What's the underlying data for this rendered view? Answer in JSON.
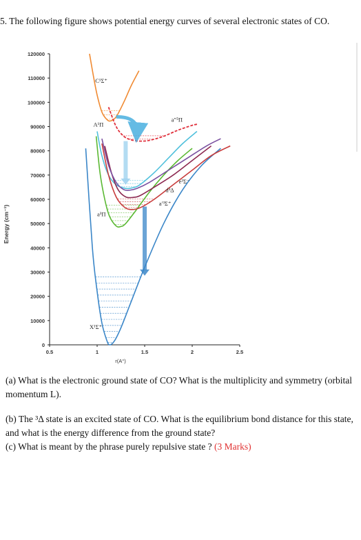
{
  "question": {
    "intro": "5. The following figure shows potential energy curves of several electronic states of CO."
  },
  "chart_data": {
    "type": "line",
    "title": "",
    "xlabel": "r(A°)",
    "ylabel": "Energy (cm⁻¹)",
    "xlim": [
      0.5,
      2.5
    ],
    "ylim": [
      0,
      120000
    ],
    "xticks": [
      "0.5",
      "1",
      "1.5",
      "2",
      "2.5"
    ],
    "yticks": [
      "0",
      "10000",
      "20000",
      "30000",
      "40000",
      "50000",
      "60000",
      "70000",
      "80000",
      "90000",
      "100000",
      "110000",
      "120000"
    ],
    "grid": false,
    "legend": "none",
    "state_labels": [
      "X¹Σ⁺",
      "a³Π",
      "A¹Π",
      "a′³Σ⁺",
      "d³Δ",
      "e³Σ⁻",
      "C¹Σ⁺",
      "a″⁵Π"
    ],
    "series": [
      {
        "name": "X¹Σ⁺",
        "color": "#3a86c8",
        "x": [
          0.88,
          0.95,
          1.0,
          1.05,
          1.1,
          1.13,
          1.18,
          1.25,
          1.35,
          1.5,
          1.7,
          1.9,
          2.1,
          2.3
        ],
        "y": [
          81000,
          40000,
          22000,
          9000,
          2000,
          0,
          1500,
          7000,
          17000,
          32000,
          50000,
          64000,
          74000,
          81000
        ]
      },
      {
        "name": "a³Π",
        "color": "#5ab832",
        "x": [
          0.99,
          1.03,
          1.08,
          1.13,
          1.2,
          1.25,
          1.3,
          1.4,
          1.55,
          1.7,
          1.85,
          2.0
        ],
        "y": [
          86000,
          71000,
          60000,
          53000,
          49000,
          48800,
          50000,
          55000,
          63000,
          70000,
          76000,
          81000
        ]
      },
      {
        "name": "A¹Π",
        "color": "#4fc0dc",
        "x": [
          1.0,
          1.05,
          1.12,
          1.2,
          1.3,
          1.38,
          1.45,
          1.6,
          1.75,
          1.9,
          2.05
        ],
        "y": [
          88000,
          78000,
          70000,
          66000,
          64500,
          64800,
          66000,
          71000,
          77000,
          83000,
          88000
        ]
      },
      {
        "name": "a′³Σ⁺",
        "color": "#c83c3c",
        "x": [
          1.05,
          1.12,
          1.2,
          1.28,
          1.35,
          1.45,
          1.6,
          1.8,
          2.0,
          2.2,
          2.4
        ],
        "y": [
          83000,
          70000,
          61000,
          57000,
          55800,
          56500,
          60000,
          66000,
          72000,
          78000,
          82000
        ]
      },
      {
        "name": "d³Δ",
        "color": "#8c2850",
        "x": [
          1.08,
          1.15,
          1.22,
          1.3,
          1.38,
          1.45,
          1.6,
          1.8,
          2.0,
          2.2
        ],
        "y": [
          82000,
          71000,
          64000,
          61000,
          60800,
          61500,
          65000,
          70000,
          76000,
          82000
        ]
      },
      {
        "name": "e³Σ⁻",
        "color": "#7a50a0",
        "x": [
          1.05,
          1.12,
          1.2,
          1.28,
          1.35,
          1.42,
          1.55,
          1.75,
          1.95,
          2.15,
          2.3
        ],
        "y": [
          85000,
          74000,
          67000,
          64000,
          63800,
          64500,
          67000,
          72000,
          77000,
          82000,
          85000
        ]
      },
      {
        "name": "C¹Σ⁺",
        "color": "#f08a32",
        "x": [
          0.92,
          0.96,
          1.0,
          1.05,
          1.1,
          1.14,
          1.2,
          1.28,
          1.36,
          1.44
        ],
        "y": [
          120000,
          111000,
          103000,
          96000,
          93000,
          92300,
          94000,
          100000,
          107000,
          113000
        ]
      },
      {
        "name": "a″⁵Π",
        "color": "#e0303c",
        "x": [
          1.12,
          1.2,
          1.28,
          1.36,
          1.45,
          1.55,
          1.7,
          1.85,
          2.0,
          2.06
        ],
        "y": [
          98000,
          90000,
          86000,
          84500,
          84000,
          84300,
          86000,
          88500,
          90500,
          91000
        ]
      }
    ],
    "vibrational_levels": [
      {
        "state": "X¹Σ⁺",
        "color": "#3a86c8",
        "levels": [
          1000,
          3000,
          5500,
          8000,
          10500,
          13000,
          15500,
          18000,
          20500,
          23000,
          25500,
          28000
        ]
      },
      {
        "state": "a³Π",
        "color": "#5ab832",
        "levels": [
          49600,
          51200,
          52800,
          54400,
          56000,
          57600
        ]
      },
      {
        "state": "A¹Π",
        "color": "#4fc0dc",
        "levels": [
          65200,
          66500,
          67800
        ]
      },
      {
        "state": "a′³Σ⁺",
        "color": "#c83c3c",
        "levels": [
          56600,
          57800,
          59000,
          60200
        ]
      },
      {
        "state": "C¹Σ⁺",
        "color": "#f08a32",
        "levels": [
          93000,
          94800,
          96500
        ]
      },
      {
        "state": "a″⁵Π",
        "color": "#e0303c",
        "levels": [
          84800,
          86200
        ]
      }
    ],
    "arrows": [
      {
        "color": "#4ab0e0",
        "from": [
          1.2,
          94000
        ],
        "to": [
          1.42,
          87500
        ],
        "kind": "curved"
      },
      {
        "color": "#9ad0ee",
        "from": [
          1.3,
          84000
        ],
        "to": [
          1.3,
          66000
        ],
        "kind": "vertical"
      },
      {
        "color": "#3a86c8",
        "from": [
          1.5,
          57000
        ],
        "to": [
          1.5,
          28500
        ],
        "kind": "vertical"
      }
    ]
  },
  "parts": {
    "a": "(a) What is the electronic ground state of CO? What is the multiplicity and symmetry (orbital momentum L).",
    "b": "(b) The ³Δ state is an excited state of CO. What is the equilibrium bond distance for this state, and what is the energy difference from the ground state?",
    "c": "(c) What is meant by the phrase purely repulsive state ?",
    "c_marks": "(3 Marks)"
  }
}
